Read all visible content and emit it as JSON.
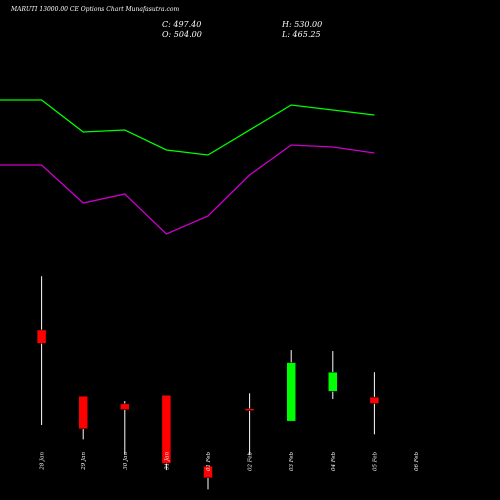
{
  "header": {
    "title": "MARUTI 13000.00 CE Options Chart Munafasutra.com",
    "c": "C: 497.40",
    "h": "H: 530.00",
    "o": "O: 504.00",
    "l": "L: 465.25"
  },
  "chart_data": {
    "type": "candlestick",
    "title": "MARUTI 13000.00 CE Options Chart Munafasutra.com",
    "categories": [
      "28 Jan",
      "29 Jan",
      "30 Jan",
      "31 Jan",
      "01 Feb",
      "02 Feb",
      "03 Feb",
      "04 Feb",
      "05 Feb",
      "06 Feb"
    ],
    "candles": [
      {
        "open": 574,
        "high": 630,
        "low": 475,
        "close": 560,
        "color": "red"
      },
      {
        "open": 505,
        "high": 505,
        "low": 460,
        "close": 471,
        "color": "red"
      },
      {
        "open": 497,
        "high": 500,
        "low": 445,
        "close": 491,
        "color": "red"
      },
      {
        "open": 506,
        "high": 506,
        "low": 428,
        "close": 435,
        "color": "red"
      },
      {
        "open": 432,
        "high": 432,
        "low": 408,
        "close": 420,
        "color": "red"
      },
      {
        "open": 492,
        "high": 508,
        "low": 444,
        "close": 490,
        "color": "red"
      },
      {
        "open": 479,
        "high": 553,
        "low": 479,
        "close": 540,
        "color": "green"
      },
      {
        "open": 510,
        "high": 552,
        "low": 502,
        "close": 530,
        "color": "green"
      },
      {
        "open": 504,
        "high": 530,
        "low": 465.25,
        "close": 497.4,
        "color": "red"
      }
    ],
    "candle_positions": [
      1,
      2,
      3,
      4,
      5,
      6,
      7,
      8,
      9
    ],
    "series": [
      {
        "name": "",
        "color": "#00ff00",
        "points": [
          [
            0,
            100
          ],
          [
            1,
            100
          ],
          [
            2,
            132
          ],
          [
            3,
            130
          ],
          [
            4,
            150
          ],
          [
            5,
            155
          ],
          [
            7,
            105
          ],
          [
            9,
            115
          ]
        ]
      },
      {
        "name": "",
        "color": "#cc00cc",
        "points": [
          [
            0,
            165
          ],
          [
            1,
            165
          ],
          [
            2,
            203
          ],
          [
            3,
            194
          ],
          [
            4,
            234
          ],
          [
            5,
            216
          ],
          [
            6,
            175
          ],
          [
            7,
            145
          ],
          [
            8,
            147
          ],
          [
            9,
            153
          ]
        ]
      }
    ],
    "colors": {
      "up": "#00ff00",
      "down": "#ff0000",
      "wick": "#ffffff",
      "background": "#000000"
    }
  }
}
